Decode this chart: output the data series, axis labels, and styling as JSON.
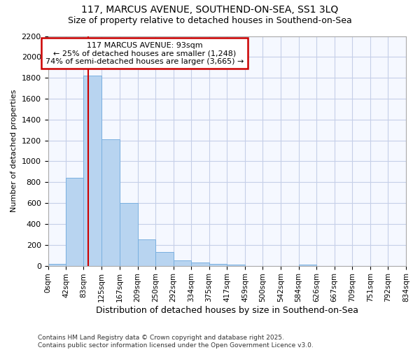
{
  "title1": "117, MARCUS AVENUE, SOUTHEND-ON-SEA, SS1 3LQ",
  "title2": "Size of property relative to detached houses in Southend-on-Sea",
  "xlabel": "Distribution of detached houses by size in Southend-on-Sea",
  "ylabel": "Number of detached properties",
  "footer1": "Contains HM Land Registry data © Crown copyright and database right 2025.",
  "footer2": "Contains public sector information licensed under the Open Government Licence v3.0.",
  "bin_edges": [
    0,
    42,
    83,
    125,
    167,
    209,
    250,
    292,
    334,
    375,
    417,
    459,
    500,
    542,
    584,
    626,
    667,
    709,
    751,
    792,
    834
  ],
  "bar_heights": [
    20,
    840,
    1820,
    1210,
    600,
    255,
    130,
    50,
    30,
    20,
    10,
    0,
    0,
    0,
    10,
    0,
    0,
    0,
    0,
    0
  ],
  "bar_color": "#b8d4f0",
  "bar_edge_color": "#7ab0e0",
  "property_size": 93,
  "vline_color": "#cc0000",
  "annotation_text": "117 MARCUS AVENUE: 93sqm\n← 25% of detached houses are smaller (1,248)\n74% of semi-detached houses are larger (3,665) →",
  "annotation_box_color": "#ffffff",
  "annotation_border_color": "#cc0000",
  "ylim": [
    0,
    2200
  ],
  "yticks": [
    0,
    200,
    400,
    600,
    800,
    1000,
    1200,
    1400,
    1600,
    1800,
    2000,
    2200
  ],
  "background_color": "#ffffff",
  "plot_bg_color": "#f5f8ff",
  "grid_color": "#c5cfe8"
}
